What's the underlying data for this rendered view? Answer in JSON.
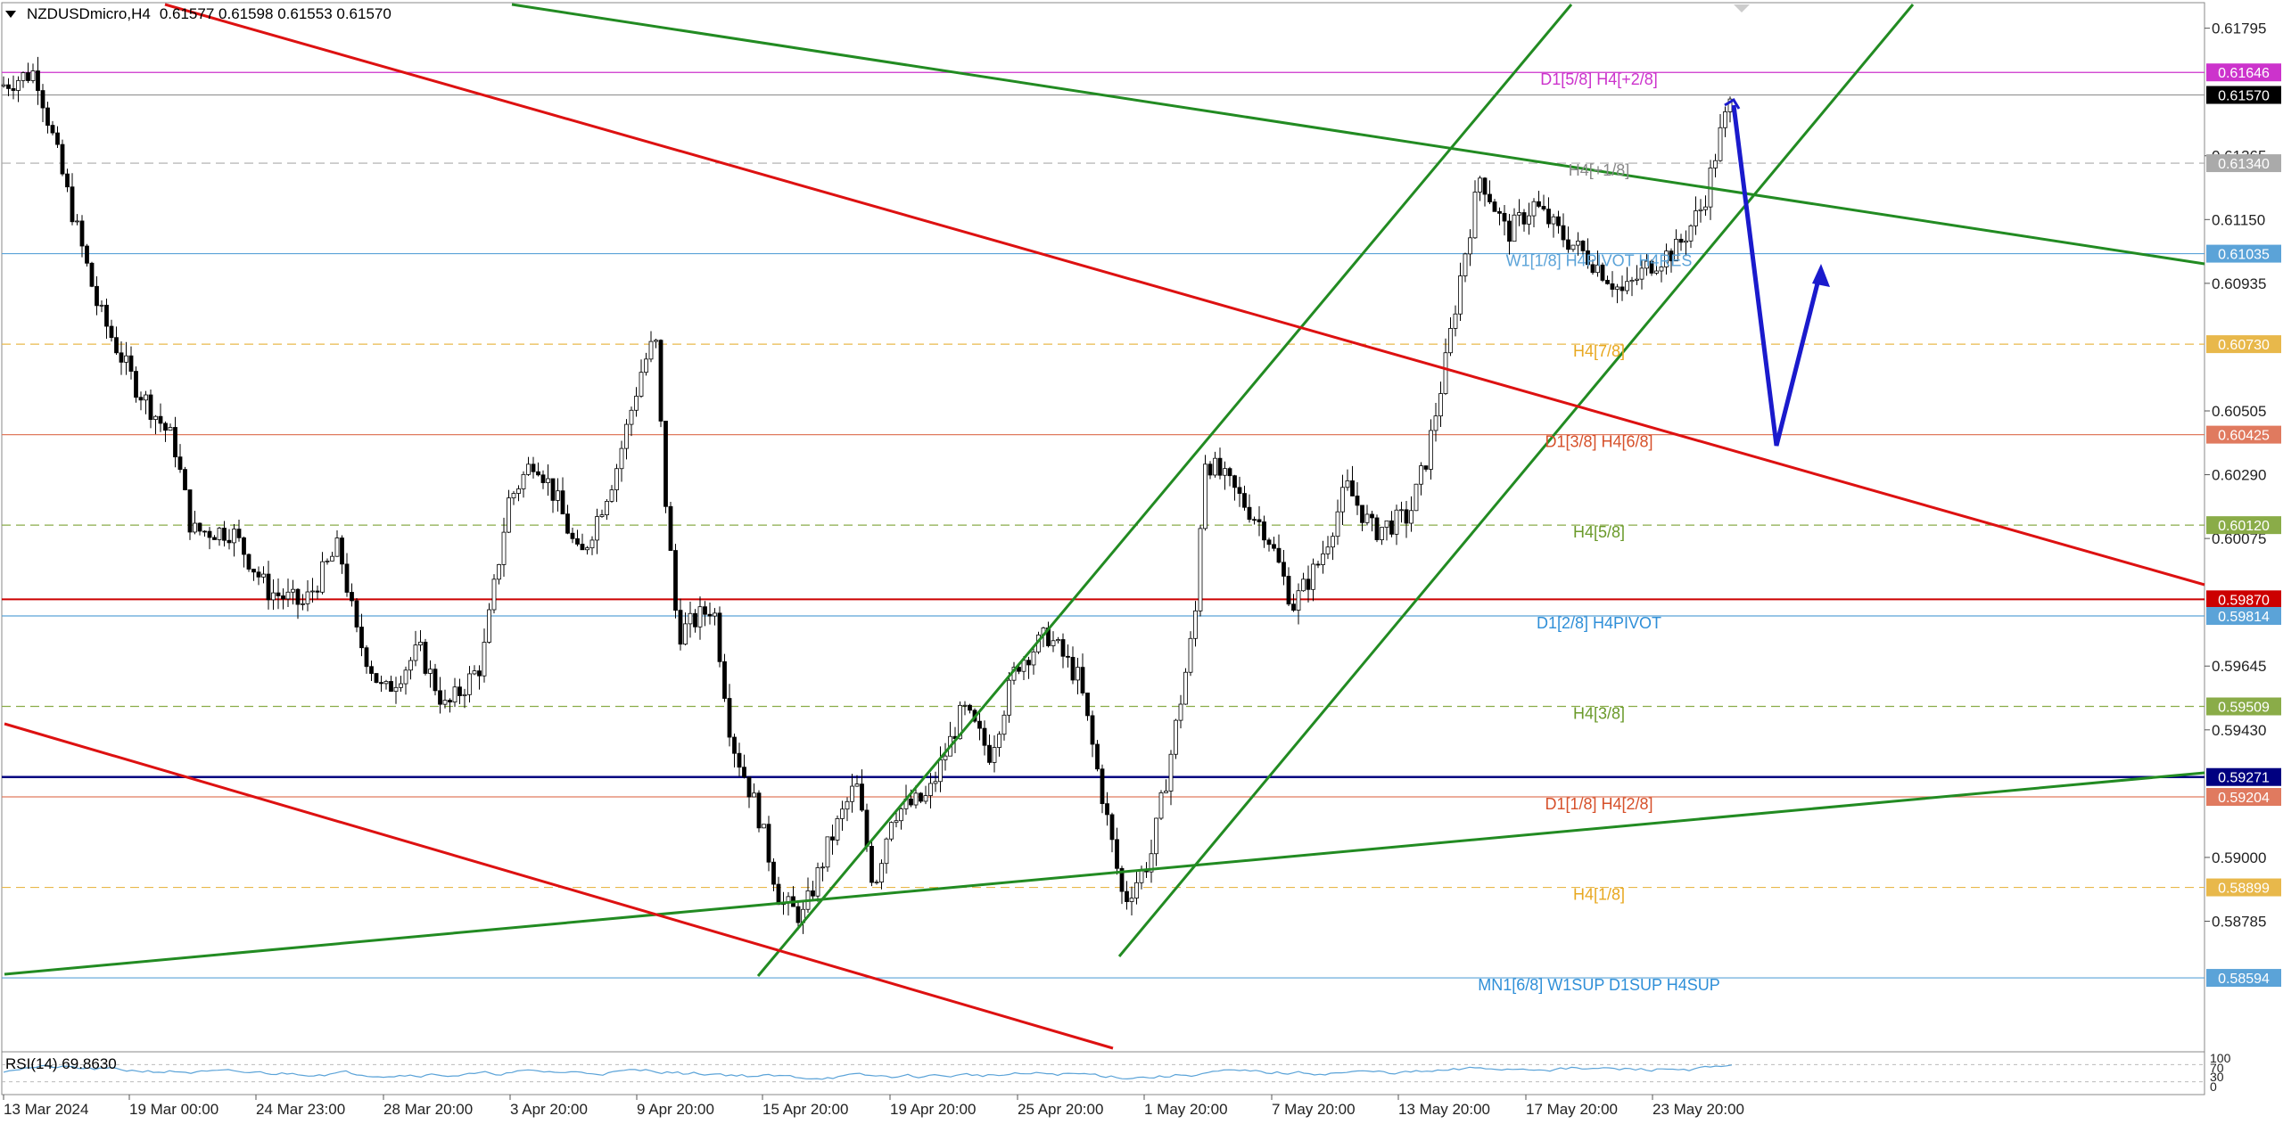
{
  "header": {
    "symbol": "NZDUSDmicro,H4",
    "ohlc": "0.61577 0.61598 0.61553 0.61570"
  },
  "rsi": {
    "label": "RSI(14) 69.8630",
    "levels": [
      "100",
      "70",
      "30",
      "0"
    ]
  },
  "price_axis": {
    "ticks": [
      "0.61795",
      "0.61365",
      "0.61150",
      "0.60935",
      "0.60505",
      "0.60290",
      "0.60075",
      "0.59645",
      "0.59430",
      "0.59000",
      "0.58785"
    ],
    "price_range": [
      0.5845,
      0.6189
    ]
  },
  "time_axis": {
    "labels": [
      "13 Mar 2024",
      "19 Mar 00:00",
      "24 Mar 23:00",
      "28 Mar 20:00",
      "3 Apr 20:00",
      "9 Apr 20:00",
      "15 Apr 20:00",
      "19 Apr 20:00",
      "25 Apr 20:00",
      "1 May 20:00",
      "7 May 20:00",
      "13 May 20:00",
      "17 May 20:00",
      "23 May 20:00"
    ]
  },
  "levels": [
    {
      "price": 0.61646,
      "tag": "0.61646",
      "label": "D1[5/8] H4[+2/8]",
      "color": "#cc33cc",
      "style": "solid",
      "label_color": "#cc33cc"
    },
    {
      "price": 0.6157,
      "tag": "0.61570",
      "label": "",
      "color": "#999999",
      "style": "solid",
      "label_color": "#000000",
      "tag_bg": "#000000"
    },
    {
      "price": 0.6134,
      "tag": "0.61340",
      "label": "H4[+1/8]",
      "color": "#aaaaaa",
      "style": "dash",
      "label_color": "#888888"
    },
    {
      "price": 0.61035,
      "tag": "0.61035",
      "label": "W1[1/8] H4PIVOT H4RES",
      "color": "#5ba3d8",
      "style": "solid",
      "label_color": "#5ba3d8"
    },
    {
      "price": 0.6073,
      "tag": "0.60730",
      "label": "H4[7/8]",
      "color": "#e8b84b",
      "style": "dash",
      "label_color": "#e8a820"
    },
    {
      "price": 0.60425,
      "tag": "0.60425",
      "label": "D1[3/8] H4[6/8]",
      "color": "#e07a5f",
      "style": "solid",
      "label_color": "#d6502a"
    },
    {
      "price": 0.6012,
      "tag": "0.60120",
      "label": "H4[5/8]",
      "color": "#8aac48",
      "style": "dash",
      "label_color": "#6a9a2a"
    },
    {
      "price": 0.5987,
      "tag": "0.59870",
      "label": "",
      "color": "#cc0000",
      "style": "solid",
      "label_color": "#cc0000"
    },
    {
      "price": 0.59814,
      "tag": "0.59814",
      "label": "D1[2/8] H4PIVOT",
      "color": "#5ba3d8",
      "style": "solid",
      "label_color": "#2f8fd8"
    },
    {
      "price": 0.59509,
      "tag": "0.59509",
      "label": "H4[3/8]",
      "color": "#8aac48",
      "style": "dash",
      "label_color": "#6a9a2a"
    },
    {
      "price": 0.59271,
      "tag": "0.59271",
      "label": "",
      "color": "#000080",
      "style": "solid",
      "label_color": "#000080"
    },
    {
      "price": 0.59204,
      "tag": "0.59204",
      "label": "D1[1/8] H4[2/8]",
      "color": "#e07a5f",
      "style": "solid",
      "label_color": "#d6502a"
    },
    {
      "price": 0.58899,
      "tag": "0.58899",
      "label": "H4[1/8]",
      "color": "#e8b84b",
      "style": "dash",
      "label_color": "#e8a820"
    },
    {
      "price": 0.58594,
      "tag": "0.58594",
      "label": "MN1[6/8] W1SUP D1SUP H4SUP",
      "color": "#5ba3d8",
      "style": "solid",
      "label_color": "#2f8fd8"
    }
  ],
  "colors": {
    "green_channel": "#228b22",
    "red_channel": "#dd1111",
    "forecast_arrow": "#1a1acc",
    "rsi_line": "#5ba3d8"
  }
}
